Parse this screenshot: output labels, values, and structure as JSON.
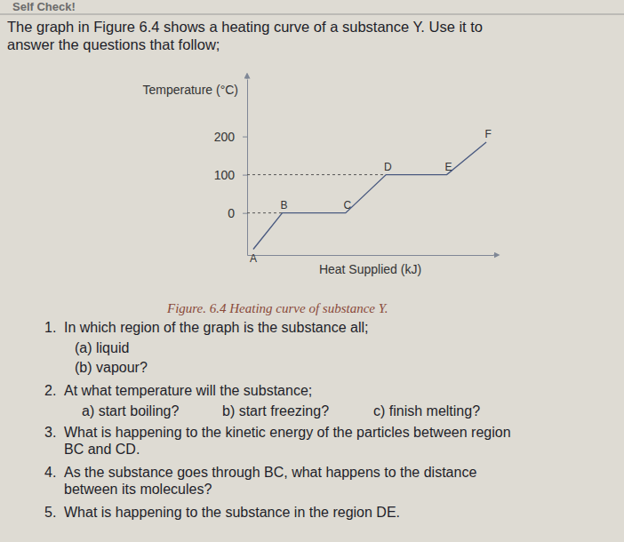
{
  "header": "Self Check!",
  "intro": [
    "The graph in Figure 6.4 shows a heating curve of a substance Y. Use it to",
    "answer the questions that follow;"
  ],
  "chart_data": {
    "type": "line",
    "y_label": "Temperature (°C)",
    "x_label": "Heat Supplied (kJ)",
    "x": [
      7,
      40,
      112,
      158,
      227,
      272
    ],
    "values": [
      -95,
      0,
      0,
      100,
      100,
      185
    ],
    "point_labels": [
      "A",
      "B",
      "C",
      "D",
      "E",
      "F"
    ],
    "xlim": [
      0,
      280
    ],
    "ylim": [
      -110,
      350
    ],
    "yticks": [
      0,
      100,
      200
    ],
    "tick_labels": "y",
    "color": "#4a5a80"
  },
  "caption": "Figure. 6.4 Heating curve of substance Y.",
  "questions": [
    {
      "number": "1.",
      "text": [
        "In which region of the graph is the substance all;"
      ],
      "parts": [
        "(a) liquid",
        "(b) vapour?"
      ]
    },
    {
      "number": "2.",
      "text": [
        "At what temperature will the substance;"
      ],
      "parts": [
        "a) start boiling?",
        "b) start freezing?",
        "c) finish melting?"
      ]
    },
    {
      "number": "3.",
      "text": [
        "What is happening to the kinetic energy of the particles between region",
        "BC and CD."
      ],
      "parts": []
    },
    {
      "number": "4.",
      "text": [
        "As the substance goes through BC, what happens to the distance",
        "between its molecules?"
      ],
      "parts": []
    },
    {
      "number": "5.",
      "text": [
        "What is happening to the substance in the region DE."
      ],
      "parts": []
    }
  ]
}
